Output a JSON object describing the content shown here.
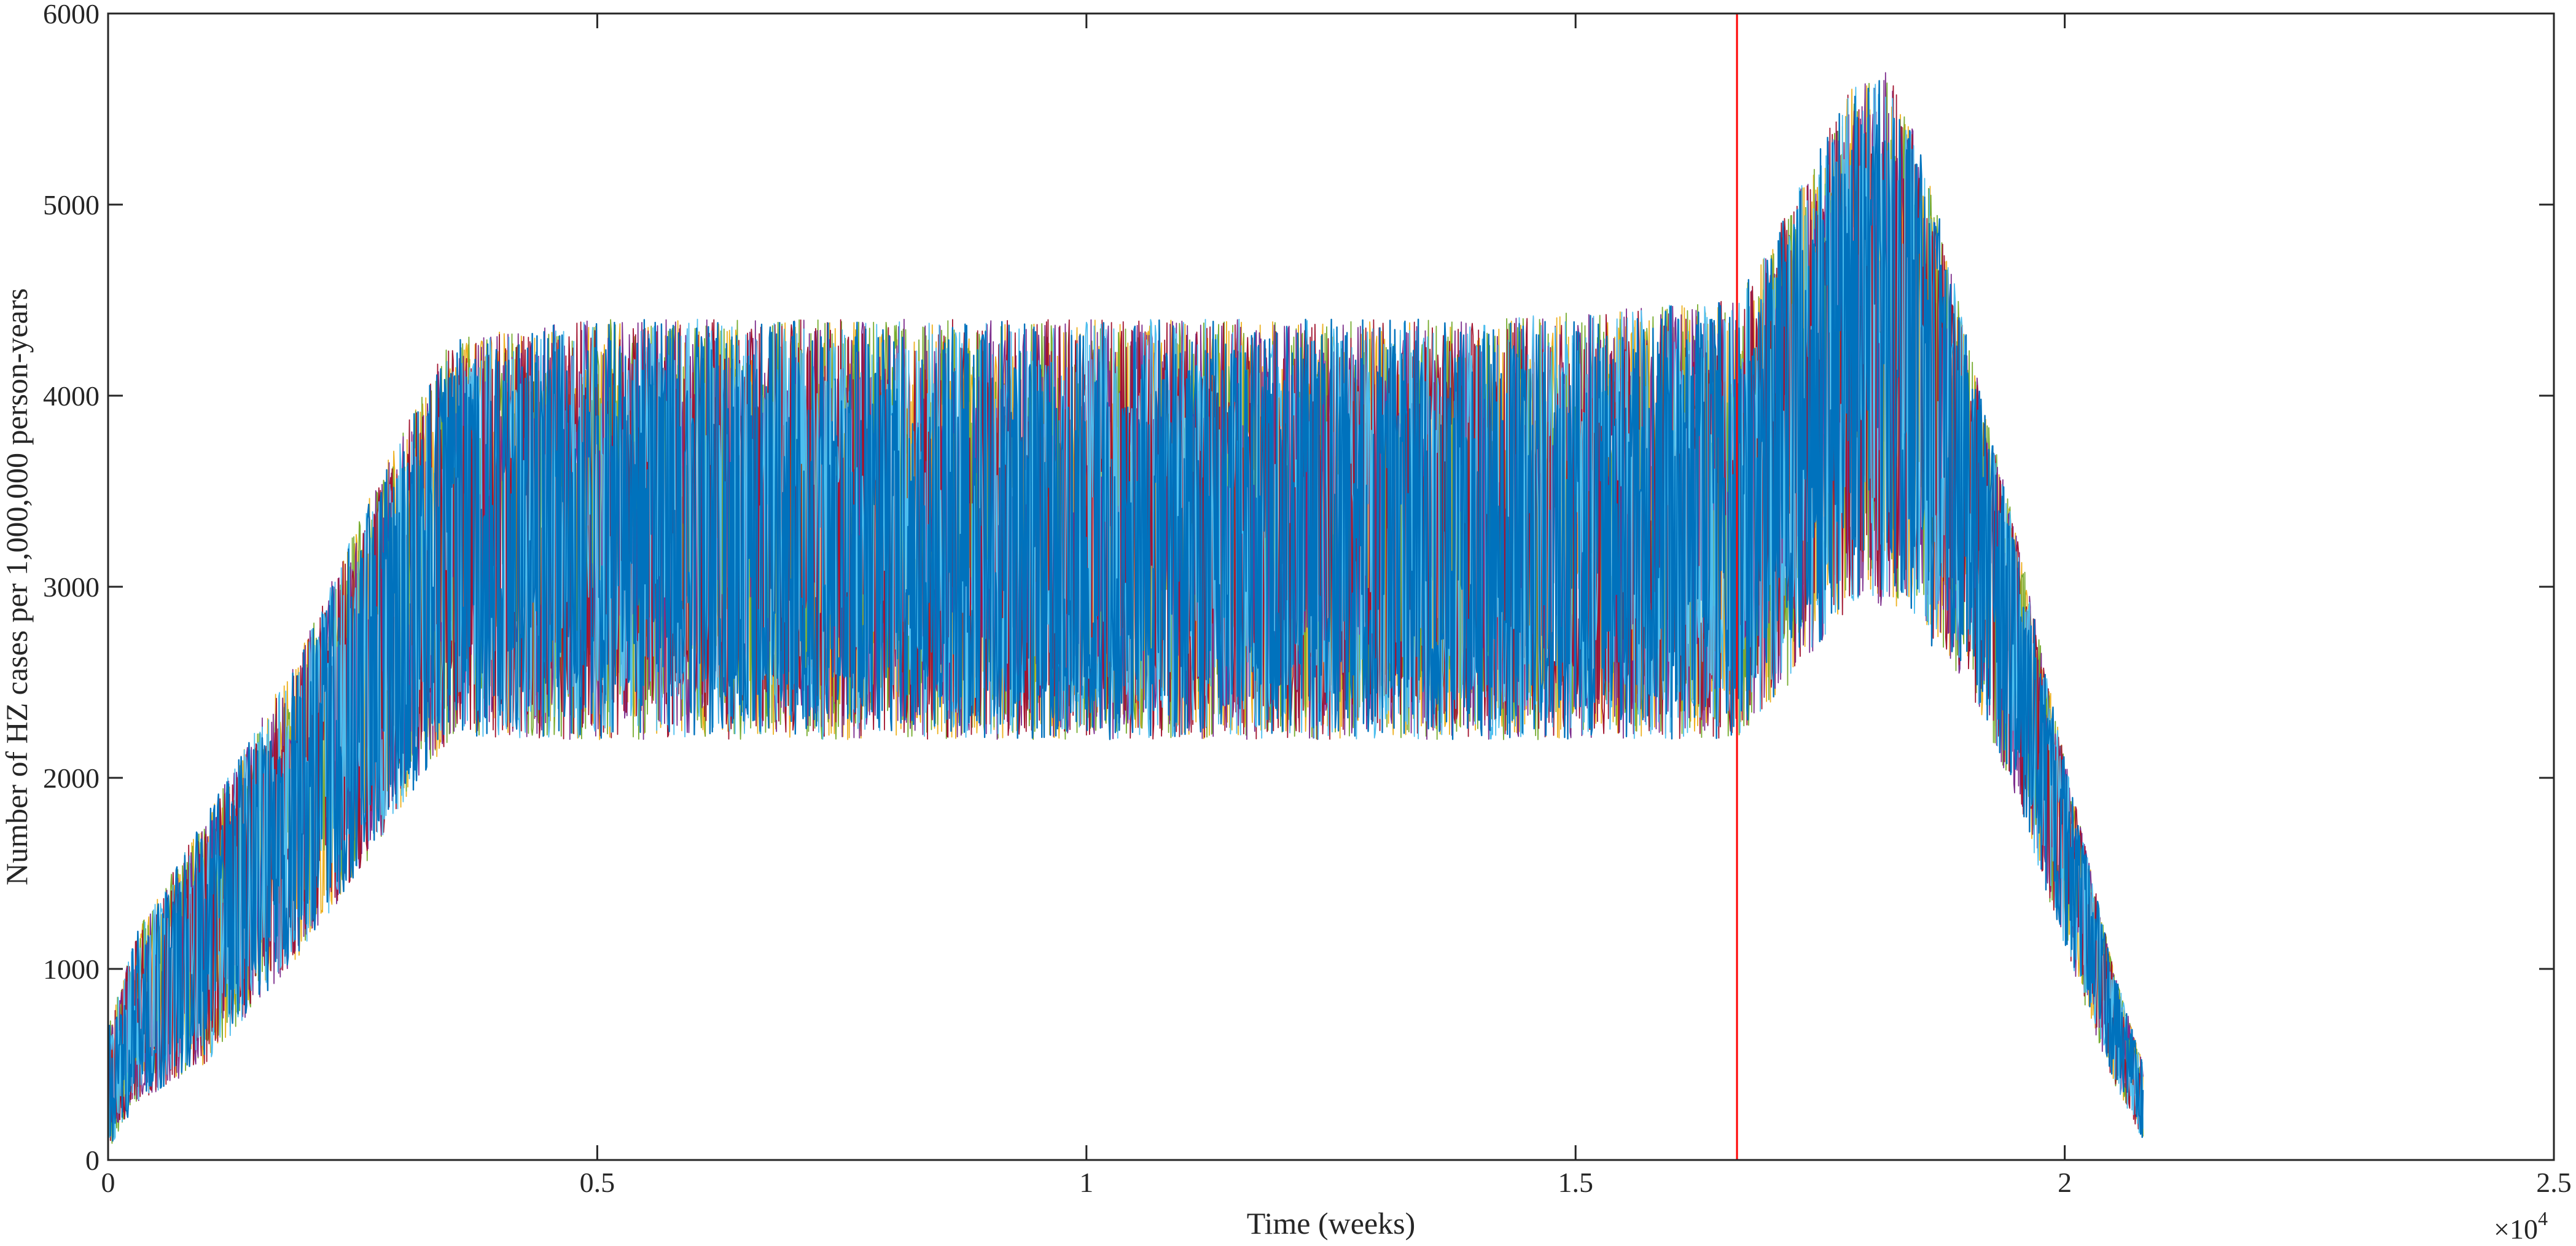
{
  "chart_data": {
    "type": "line",
    "title": "",
    "xlabel": "Time (weeks)",
    "ylabel": "Number of HZ cases per 1,000,000 person-years",
    "x_exponent_label": "×10",
    "x_exponent_power": "4",
    "xlim": [
      0,
      25000
    ],
    "ylim": [
      0,
      6000
    ],
    "x_ticks": [
      0,
      5000,
      10000,
      15000,
      20000,
      25000
    ],
    "x_tick_labels": [
      "0",
      "0.5",
      "1",
      "1.5",
      "2",
      "2.5"
    ],
    "y_ticks": [
      0,
      1000,
      2000,
      3000,
      4000,
      5000,
      6000
    ],
    "y_tick_labels": [
      "0",
      "1000",
      "2000",
      "3000",
      "4000",
      "5000",
      "6000"
    ],
    "grid": false,
    "legend": "none",
    "vertical_marker": {
      "x": 16650,
      "color": "#ff0000"
    },
    "envelope": {
      "x": [
        0,
        300,
        1000,
        2000,
        2700,
        3200,
        3500,
        5000,
        8000,
        12000,
        14000,
        16650,
        17200,
        17800,
        18200,
        18600,
        19000,
        19500,
        20000,
        20500,
        20800
      ],
      "mean": [
        350,
        700,
        1200,
        1950,
        2500,
        2950,
        3200,
        3200,
        3200,
        3200,
        3200,
        3250,
        3800,
        4350,
        4350,
        4150,
        3700,
        2800,
        1700,
        800,
        300
      ],
      "upper": [
        700,
        1200,
        1800,
        2700,
        3500,
        4000,
        4300,
        4400,
        4400,
        4400,
        4400,
        4500,
        5000,
        5600,
        5700,
        5200,
        4300,
        3300,
        2100,
        1000,
        500
      ],
      "lower": [
        50,
        300,
        500,
        1100,
        1600,
        2000,
        2200,
        2200,
        2200,
        2200,
        2200,
        2200,
        2500,
        2900,
        2900,
        2700,
        2500,
        1900,
        1100,
        400,
        100
      ]
    },
    "series": [
      {
        "color": "#EDB120",
        "offset": 120
      },
      {
        "color": "#77AC30",
        "offset": 100
      },
      {
        "color": "#7E2F8E",
        "offset": 40
      },
      {
        "color": "#A2142F",
        "offset": 0
      },
      {
        "color": "#4DBEEE",
        "offset": -30
      },
      {
        "color": "#0072BD",
        "offset": 0
      }
    ]
  }
}
